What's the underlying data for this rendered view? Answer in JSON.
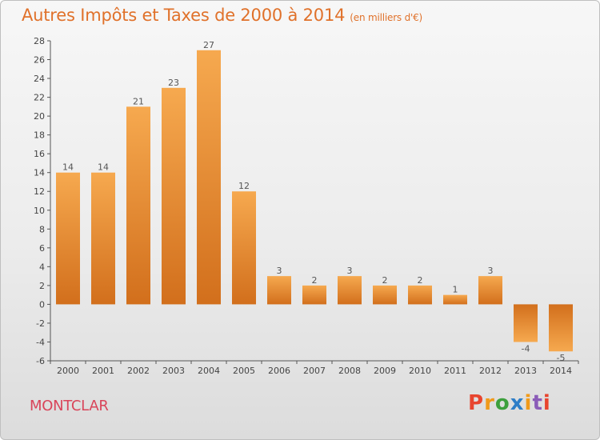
{
  "title": "Autres Impôts et Taxes de 2000 à 2014",
  "title_unit": "(en milliers d'€)",
  "commune": "MONTCLAR",
  "logo_text": "Proxiti",
  "colors": {
    "title": "#e0712a",
    "commune": "#d9455a",
    "bar_light": "#f5a650",
    "bar_dark": "#d4701c",
    "logo": [
      "#e8452f",
      "#f09a1a",
      "#3da03d",
      "#2e7ec7",
      "#f09a1a",
      "#8b5cb8",
      "#e8452f"
    ]
  },
  "chart_data": {
    "type": "bar",
    "title": "Autres Impôts et Taxes de 2000 à 2014",
    "categories": [
      "2000",
      "2001",
      "2002",
      "2003",
      "2004",
      "2005",
      "2006",
      "2007",
      "2008",
      "2009",
      "2010",
      "2011",
      "2012",
      "2013",
      "2014"
    ],
    "values": [
      14,
      14,
      21,
      23,
      27,
      12,
      3,
      2,
      3,
      2,
      2,
      1,
      3,
      -4,
      -5
    ],
    "data_labels": [
      "14",
      "14",
      "21",
      "23",
      "27",
      "12",
      "3",
      "2",
      "3",
      "2",
      "2",
      "1",
      "3",
      "-4",
      "-5"
    ],
    "ylim": [
      -6,
      28
    ],
    "yticks": [
      -6,
      -4,
      -2,
      0,
      2,
      4,
      6,
      8,
      10,
      12,
      14,
      16,
      18,
      20,
      22,
      24,
      26,
      28
    ],
    "ytick_labels": [
      "-6",
      "-4",
      "-2",
      "0",
      "2",
      "4",
      "6",
      "8",
      "10",
      "12",
      "14",
      "16",
      "18",
      "20",
      "22",
      "24",
      "26",
      "28"
    ],
    "grid": false,
    "xlabel": "",
    "ylabel": ""
  }
}
